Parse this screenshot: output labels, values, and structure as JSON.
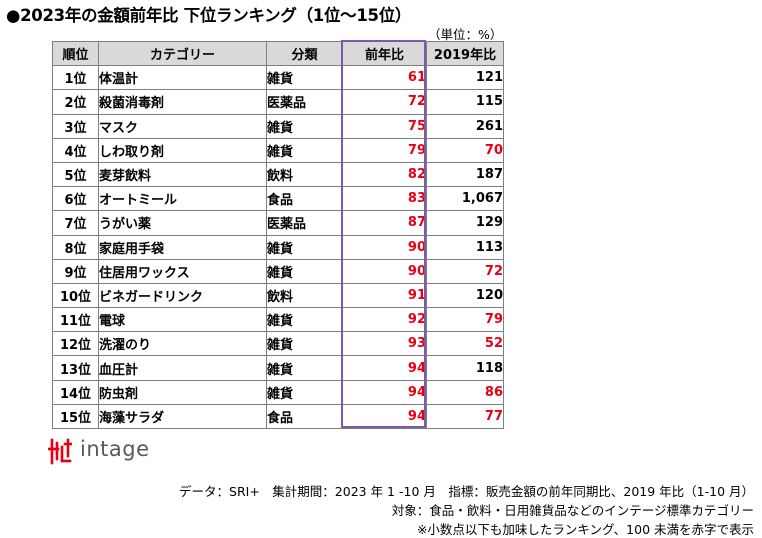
{
  "title": "●2023年の金額前年比 下位ランキング（1位～15位）",
  "unit": "（単位：%）",
  "table": {
    "headers": [
      "順位",
      "カテゴリー",
      "分類",
      "前年比",
      "2019年比"
    ],
    "rows": [
      {
        "rank": "1位",
        "category": "体温計",
        "class": "雑貨",
        "yoy": "61",
        "vs2019": "121",
        "vs2019_red": false
      },
      {
        "rank": "2位",
        "category": "殺菌消毒剤",
        "class": "医薬品",
        "yoy": "72",
        "vs2019": "115",
        "vs2019_red": false
      },
      {
        "rank": "3位",
        "category": "マスク",
        "class": "雑貨",
        "yoy": "75",
        "vs2019": "261",
        "vs2019_red": false
      },
      {
        "rank": "4位",
        "category": "しわ取り剤",
        "class": "雑貨",
        "yoy": "79",
        "vs2019": "70",
        "vs2019_red": true
      },
      {
        "rank": "5位",
        "category": "麦芽飲料",
        "class": "飲料",
        "yoy": "82",
        "vs2019": "187",
        "vs2019_red": false
      },
      {
        "rank": "6位",
        "category": "オートミール",
        "class": "食品",
        "yoy": "83",
        "vs2019": "1,067",
        "vs2019_red": false
      },
      {
        "rank": "7位",
        "category": "うがい薬",
        "class": "医薬品",
        "yoy": "87",
        "vs2019": "129",
        "vs2019_red": false
      },
      {
        "rank": "8位",
        "category": "家庭用手袋",
        "class": "雑貨",
        "yoy": "90",
        "vs2019": "113",
        "vs2019_red": false
      },
      {
        "rank": "9位",
        "category": "住居用ワックス",
        "class": "雑貨",
        "yoy": "90",
        "vs2019": "72",
        "vs2019_red": true
      },
      {
        "rank": "10位",
        "category": "ビネガードリンク",
        "class": "飲料",
        "yoy": "91",
        "vs2019": "120",
        "vs2019_red": false
      },
      {
        "rank": "11位",
        "category": "電球",
        "class": "雑貨",
        "yoy": "92",
        "vs2019": "79",
        "vs2019_red": true
      },
      {
        "rank": "12位",
        "category": "洗濯のり",
        "class": "雑貨",
        "yoy": "93",
        "vs2019": "52",
        "vs2019_red": true
      },
      {
        "rank": "13位",
        "category": "血圧計",
        "class": "雑貨",
        "yoy": "94",
        "vs2019": "118",
        "vs2019_red": false
      },
      {
        "rank": "14位",
        "category": "防虫剤",
        "class": "雑貨",
        "yoy": "94",
        "vs2019": "86",
        "vs2019_red": true
      },
      {
        "rank": "15位",
        "category": "海藻サラダ",
        "class": "食品",
        "yoy": "94",
        "vs2019": "77",
        "vs2019_red": true
      }
    ]
  },
  "logo": {
    "text": "intage",
    "icon": "intage-logo-icon"
  },
  "notes": [
    "データ：SRI+　集計期間：2023 年 1 -10 月　指標：販売金額の前年同期比、2019 年比（1-10 月）",
    "対象：食品・飲料・日用雑貨品などのインテージ標準カテゴリー",
    "※小数点以下も加味したランキング、100 未満を赤字で表示"
  ],
  "colors": {
    "red_value": "#e60012",
    "highlight_border": "#7d5aa6",
    "header_bg": "#d9d9d9",
    "logo_red": "#e60012",
    "logo_gray": "#595959"
  }
}
